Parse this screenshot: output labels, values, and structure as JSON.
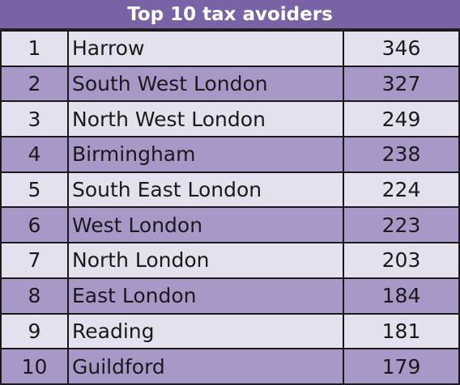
{
  "table": {
    "title": "Top 10 tax avoiders",
    "rows": [
      [
        1,
        "Harrow",
        346
      ],
      [
        2,
        "South West London",
        327
      ],
      [
        3,
        "North West London",
        249
      ],
      [
        4,
        "Birmingham",
        238
      ],
      [
        5,
        "South East London",
        224
      ],
      [
        6,
        "West London",
        223
      ],
      [
        7,
        "North London",
        203
      ],
      [
        8,
        "East London",
        184
      ],
      [
        9,
        "Reading",
        181
      ],
      [
        10,
        "Guildford",
        179
      ]
    ]
  }
}
